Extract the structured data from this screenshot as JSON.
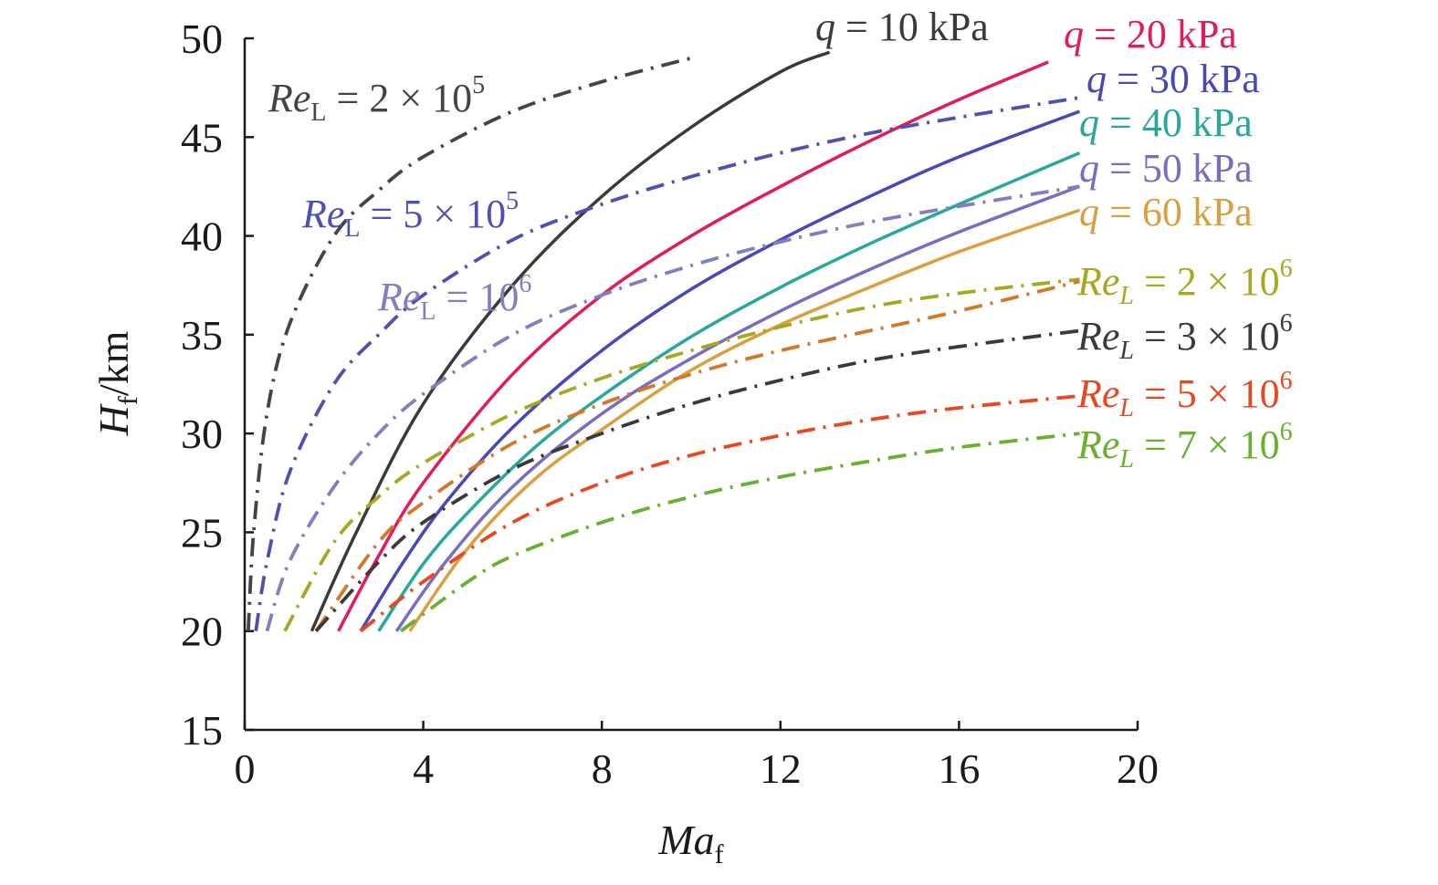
{
  "chart_data": {
    "type": "line",
    "title": "",
    "xlabel": {
      "main": "Ma",
      "sub": "f"
    },
    "ylabel": {
      "main": "H",
      "sub": "f",
      "unit": "/km"
    },
    "xlim": [
      0,
      20
    ],
    "ylim": [
      15,
      50
    ],
    "xticks": [
      "0",
      "4",
      "8",
      "12",
      "16",
      "20"
    ],
    "yticks": [
      "15",
      "20",
      "25",
      "30",
      "35",
      "40",
      "45",
      "50"
    ],
    "grid": false,
    "legend": "inline labels",
    "series": [
      {
        "kind": "q",
        "color": "#3a3a3a",
        "style": "solid",
        "label": {
          "var": "q",
          "rest": " = 10 kPa"
        },
        "x": [
          1.5,
          2.5,
          4,
          6,
          8,
          10,
          12,
          13.1
        ],
        "y": [
          20,
          25,
          31.5,
          37.5,
          42,
          45.5,
          48.3,
          49.3
        ]
      },
      {
        "kind": "q",
        "color": "#e01c5c",
        "style": "solid",
        "label": {
          "var": "q",
          "rest": " = 20 kPa"
        },
        "x": [
          2.1,
          3,
          4,
          6,
          8,
          10,
          12,
          14,
          16,
          18
        ],
        "y": [
          20,
          23.8,
          27.5,
          33,
          37,
          40,
          42.5,
          44.8,
          46.9,
          48.8
        ]
      },
      {
        "kind": "q",
        "color": "#4848b8",
        "style": "solid",
        "label": {
          "var": "q",
          "rest": " = 30 kPa"
        },
        "x": [
          2.6,
          3.5,
          4.5,
          6,
          8,
          10,
          12,
          14,
          16,
          18.7
        ],
        "y": [
          20,
          23.3,
          26.5,
          30.3,
          34.2,
          37.3,
          39.8,
          42,
          44,
          46.3
        ]
      },
      {
        "kind": "q",
        "color": "#28a89a",
        "style": "solid",
        "label": {
          "var": "q",
          "rest": " = 40 kPa"
        },
        "x": [
          3.0,
          4,
          5,
          6.5,
          8,
          10,
          12,
          14,
          16,
          18.7
        ],
        "y": [
          20,
          23.4,
          26,
          29.3,
          31.9,
          34.9,
          37.4,
          39.6,
          41.6,
          44.2
        ]
      },
      {
        "kind": "q",
        "color": "#7a6cc0",
        "style": "solid",
        "label": {
          "var": "q",
          "rest": " = 50 kPa"
        },
        "x": [
          3.4,
          4.5,
          6,
          8,
          10,
          12,
          14,
          16,
          18.7
        ],
        "y": [
          20,
          23.5,
          27.3,
          31,
          33.8,
          36.2,
          38.3,
          40.2,
          42.5
        ]
      },
      {
        "kind": "q",
        "color": "#d8a040",
        "style": "solid",
        "label": {
          "var": "q",
          "rest": " = 60 kPa"
        },
        "x": [
          3.7,
          5,
          6.5,
          8,
          10,
          12,
          14,
          16,
          18.7
        ],
        "y": [
          20,
          24.2,
          27.7,
          30.2,
          33.2,
          35.5,
          37.4,
          39.2,
          41.3
        ]
      },
      {
        "kind": "re",
        "color": "#444444",
        "style": "dashdot",
        "label": {
          "var": "Re",
          "sub": "L",
          "rest": " = 2 × 10",
          "sup": "5"
        },
        "x": [
          0.08,
          0.2,
          0.5,
          1,
          2,
          3,
          4,
          6,
          8,
          10
        ],
        "y": [
          20,
          25,
          31,
          35.5,
          40,
          42.3,
          44,
          46.3,
          47.8,
          49
        ]
      },
      {
        "kind": "re",
        "color": "#5050b0",
        "style": "dashdot",
        "label": {
          "var": "Re",
          "sub": "L",
          "rest": " = 5 × 10",
          "sup": "5"
        },
        "x": [
          0.25,
          0.5,
          1,
          2,
          3,
          4,
          6,
          8,
          10,
          12,
          14,
          16,
          18.7
        ],
        "y": [
          20,
          23.5,
          28,
          32.5,
          35,
          37,
          39.8,
          41.6,
          43,
          44.2,
          45.2,
          46,
          47
        ]
      },
      {
        "kind": "re",
        "color": "#8080c0",
        "style": "dashdot",
        "label": {
          "var": "Re",
          "sub": "L",
          "rest": " = 10",
          "sup": "6"
        },
        "x": [
          0.5,
          1,
          2,
          3,
          4,
          6,
          8,
          10,
          12,
          14,
          16,
          18.7
        ],
        "y": [
          20,
          23.5,
          27.3,
          30,
          32,
          35,
          37,
          38.5,
          39.7,
          40.7,
          41.5,
          42.5
        ]
      },
      {
        "kind": "re",
        "color": "#a8a820",
        "style": "dashdot",
        "label": {
          "var": "Re",
          "sub": "L",
          "rest": " = 2 × 10",
          "sup": "6"
        },
        "x": [
          0.9,
          2,
          3,
          4,
          6,
          8,
          10,
          12,
          14,
          16,
          18.7
        ],
        "y": [
          20,
          24.5,
          26.8,
          28.5,
          31,
          32.8,
          34.2,
          35.4,
          36.4,
          37.1,
          37.8
        ]
      },
      {
        "kind": "re",
        "color": "#d47828",
        "style": "dashdot",
        "label": null,
        "x": [
          1.6,
          3,
          4,
          6,
          8,
          10,
          12,
          14,
          16,
          18.7
        ],
        "y": [
          20,
          24.5,
          26.5,
          29.5,
          31.5,
          33,
          34.2,
          35.2,
          36.2,
          37.7
        ]
      },
      {
        "kind": "re",
        "color": "#3a3a3a",
        "style": "dashdot",
        "label": {
          "var": "Re",
          "sub": "L",
          "rest": " = 3 × 10",
          "sup": "6"
        },
        "x": [
          1.6,
          3,
          4,
          6,
          8,
          10,
          12,
          14,
          16,
          18.7
        ],
        "y": [
          20,
          23.5,
          25.5,
          28.2,
          30,
          31.5,
          32.7,
          33.7,
          34.4,
          35.2
        ]
      },
      {
        "kind": "re",
        "color": "#e84820",
        "style": "dashdot",
        "label": {
          "var": "Re",
          "sub": "L",
          "rest": " = 5 × 10",
          "sup": "6"
        },
        "x": [
          2.6,
          4,
          6,
          8,
          10,
          12,
          14,
          16,
          18.7
        ],
        "y": [
          20,
          22.5,
          25.5,
          27.5,
          28.9,
          29.9,
          30.7,
          31.3,
          31.9
        ]
      },
      {
        "kind": "re",
        "color": "#68b030",
        "style": "dashdot",
        "label": {
          "var": "Re",
          "sub": "L",
          "rest": " = 7 × 10",
          "sup": "6"
        },
        "x": [
          3.5,
          5,
          6,
          8,
          10,
          12,
          14,
          16,
          18.7
        ],
        "y": [
          20,
          22.5,
          23.8,
          25.5,
          26.8,
          27.8,
          28.6,
          29.3,
          30
        ]
      }
    ]
  }
}
